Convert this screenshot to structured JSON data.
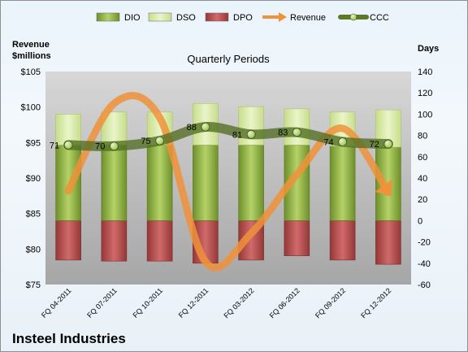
{
  "chart_data": {
    "type": "bar",
    "title": "Quarterly Periods",
    "company": "Insteel Industries",
    "left_axis_label": [
      "Revenue",
      "$millions"
    ],
    "right_axis_label": "Days",
    "categories": [
      "FQ 04-2011",
      "FQ 07-2011",
      "FQ 10-2011",
      "FQ 12-2011",
      "FQ 03-2012",
      "FQ 06-2012",
      "FQ 09-2012",
      "FQ 12-2012"
    ],
    "left_axis": {
      "min": 75,
      "max": 105,
      "step": 5,
      "prefix": "$"
    },
    "right_axis": {
      "min": -60,
      "max": 140,
      "step": 20
    },
    "legend": {
      "position": "top",
      "items": [
        {
          "name": "DIO",
          "kind": "bar",
          "color": "#84a83a"
        },
        {
          "name": "DSO",
          "kind": "bar",
          "color": "#d5e8a3"
        },
        {
          "name": "DPO",
          "kind": "bar",
          "color": "#b84b4b"
        },
        {
          "name": "Revenue",
          "kind": "arrow",
          "color": "#f0923a"
        },
        {
          "name": "CCC",
          "kind": "line",
          "color": "#5a7a2a"
        }
      ]
    },
    "series": [
      {
        "name": "DIO",
        "axis": "right",
        "values": [
          71,
          71,
          71,
          71,
          71,
          71,
          70,
          69
        ]
      },
      {
        "name": "DSO",
        "axis": "right",
        "values": [
          29,
          31,
          31,
          39,
          36,
          34,
          32,
          35
        ]
      },
      {
        "name": "DPO",
        "axis": "right",
        "values": [
          -37,
          -38,
          -38,
          -40,
          -37,
          -33,
          -37,
          -41
        ]
      },
      {
        "name": "Revenue",
        "axis": "left",
        "values": [
          88.2,
          100.5,
          98.5,
          78.2,
          82.2,
          90.5,
          97.0,
          88.0
        ]
      },
      {
        "name": "CCC",
        "axis": "right",
        "values": [
          71,
          70,
          75,
          88,
          81,
          83,
          74,
          72
        ],
        "labels": [
          "71",
          "70",
          "75",
          "88",
          "81",
          "83",
          "74",
          "72"
        ]
      }
    ],
    "colors": {
      "plot_top": "#d7d7d7",
      "plot_bottom": "#a6a6a6",
      "dio_light": "#b5d268",
      "dio_dark": "#6d8f2b",
      "dso_light": "#eaf5c9",
      "dso_dark": "#c7dd8b",
      "dpo_light": "#d16a6a",
      "dpo_dark": "#953838",
      "revenue": "#f0923a",
      "ccc_line": "#546f24",
      "ccc_marker": "#9ac24f"
    }
  }
}
